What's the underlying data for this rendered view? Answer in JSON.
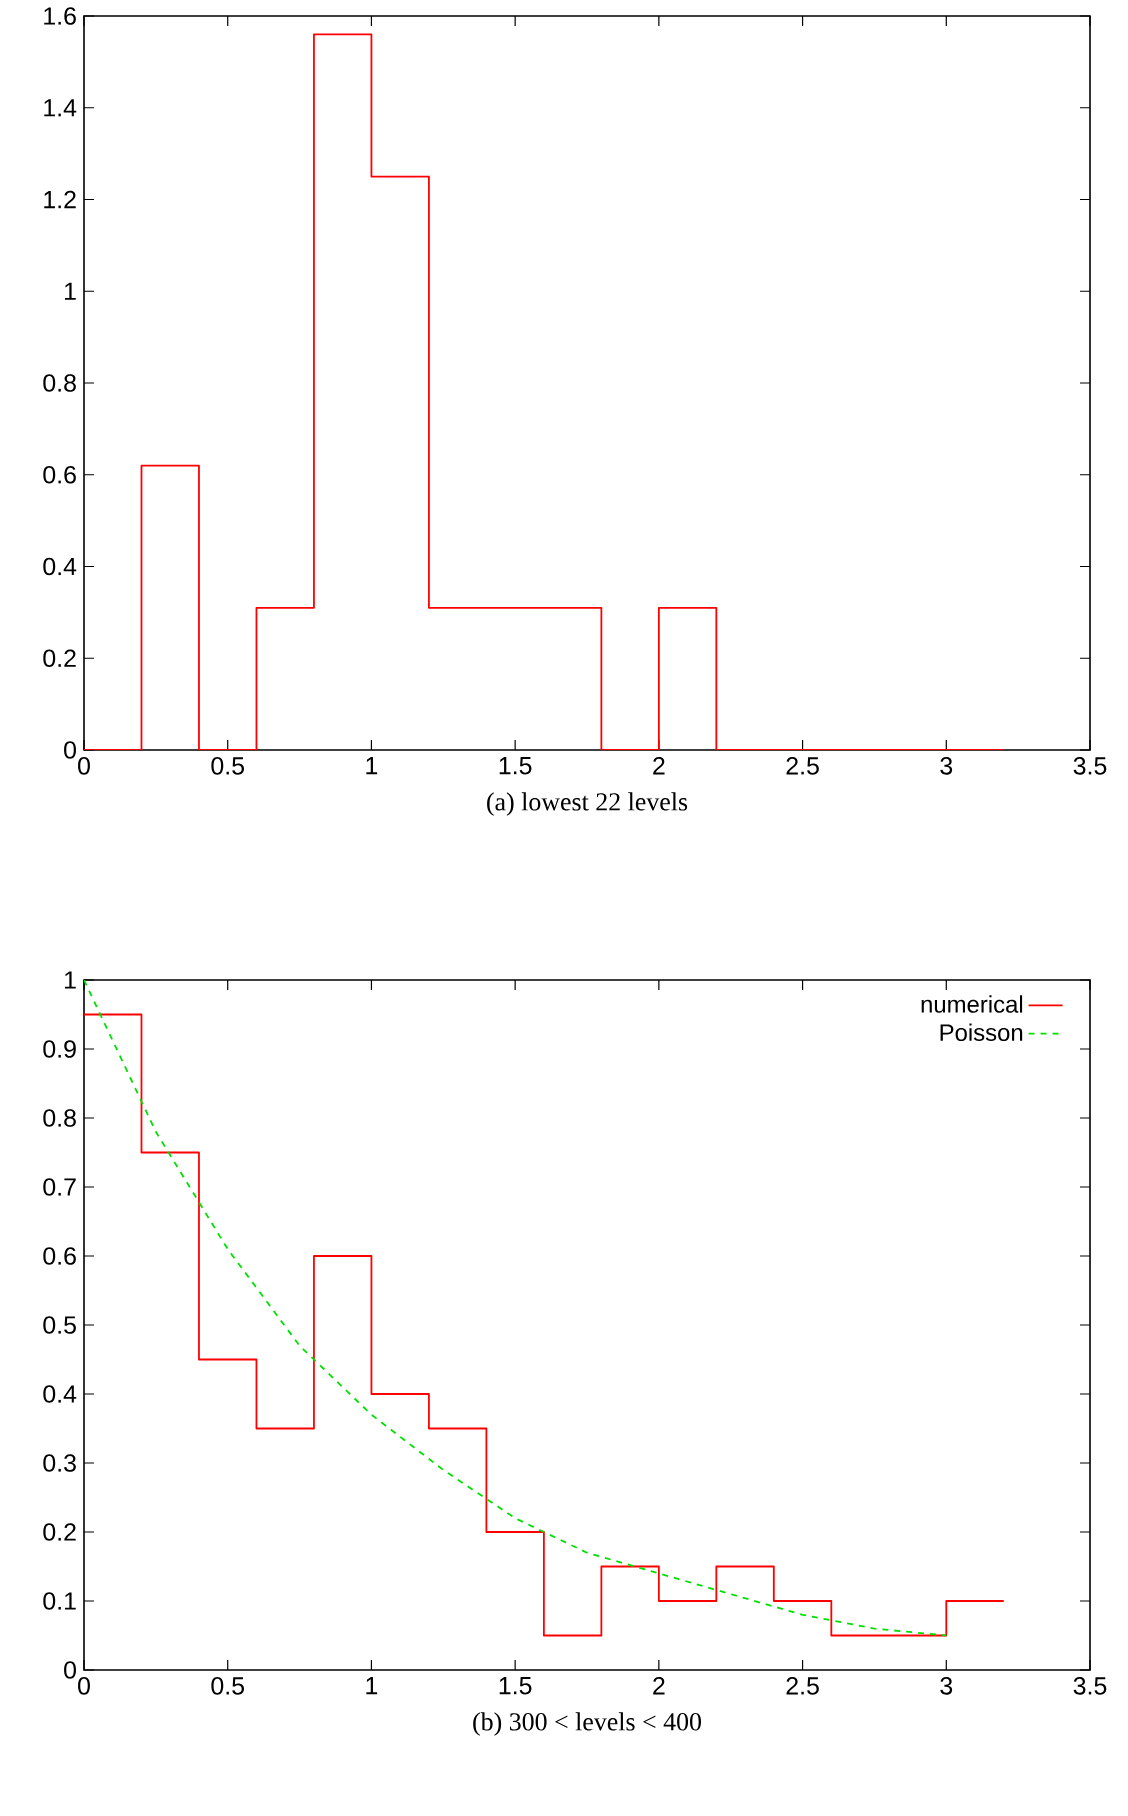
{
  "chart_data": [
    {
      "type": "histogram",
      "xlabel": "(a) lowest 22 levels",
      "bins": [
        0,
        0.2,
        0.4,
        0.6,
        0.8,
        1.0,
        1.2,
        1.4,
        1.6,
        1.8,
        2.0,
        2.2,
        2.4,
        2.6,
        2.8,
        3.0,
        3.2
      ],
      "values": [
        0,
        0.62,
        0,
        0.31,
        1.56,
        1.25,
        0.31,
        0.31,
        0.31,
        0,
        0.31,
        0,
        0,
        0,
        0,
        0
      ],
      "color": "#ff0000",
      "xlim": [
        0,
        3.5
      ],
      "ylim": [
        0,
        1.6
      ],
      "xticks": [
        0,
        0.5,
        1,
        1.5,
        2,
        2.5,
        3,
        3.5
      ],
      "yticks": [
        0,
        0.2,
        0.4,
        0.6,
        0.8,
        1,
        1.2,
        1.4,
        1.6
      ],
      "grid": false,
      "legend": false
    },
    {
      "type": "step",
      "xlabel": "(b) 300 < levels < 400",
      "xlim": [
        0,
        3.5
      ],
      "ylim": [
        0,
        1
      ],
      "xticks": [
        0,
        0.5,
        1,
        1.5,
        2,
        2.5,
        3,
        3.5
      ],
      "yticks": [
        0,
        0.1,
        0.2,
        0.3,
        0.4,
        0.5,
        0.6,
        0.7,
        0.8,
        0.9,
        1
      ],
      "grid": false,
      "legend": "top right",
      "series": [
        {
          "name": "numerical",
          "color": "#ff0000",
          "type": "step",
          "line_style": "solid",
          "x": [
            0,
            0.2,
            0.4,
            0.6,
            0.8,
            1.0,
            1.2,
            1.4,
            1.6,
            1.8,
            2.0,
            2.2,
            2.4,
            2.6,
            2.8,
            3.0,
            3.2
          ],
          "values": [
            0.95,
            0.75,
            0.45,
            0.35,
            0.6,
            0.4,
            0.35,
            0.2,
            0.05,
            0.15,
            0.1,
            0.15,
            0.1,
            0.05,
            0.05,
            0.1,
            0.1
          ]
        },
        {
          "name": "Poisson",
          "color": "#00e000",
          "type": "line",
          "line_style": "dashed",
          "x": [
            0,
            0.25,
            0.5,
            0.75,
            1,
            1.25,
            1.5,
            1.75,
            2,
            2.25,
            2.5,
            2.75,
            3
          ],
          "values": [
            1,
            0.78,
            0.61,
            0.47,
            0.37,
            0.29,
            0.22,
            0.17,
            0.14,
            0.11,
            0.08,
            0.06,
            0.05
          ]
        }
      ]
    }
  ]
}
